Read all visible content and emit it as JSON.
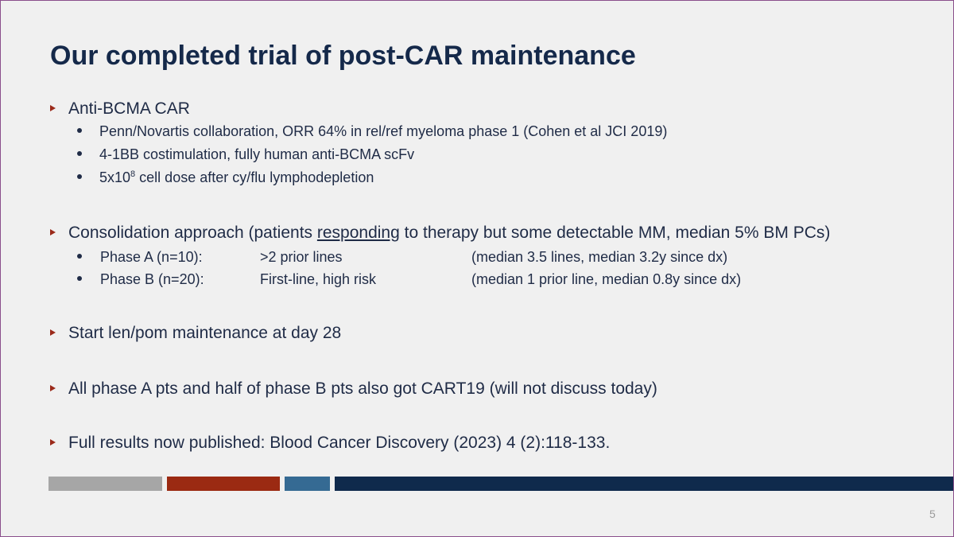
{
  "slide": {
    "title": "Our completed trial of post-CAR maintenance",
    "page_number": "5",
    "bullets": {
      "b1": {
        "text": "Anti-BCMA CAR",
        "sub1": "Penn/Novartis collaboration, ORR 64% in rel/ref myeloma phase 1 (Cohen et al JCI 2019)",
        "sub2": "4-1BB costimulation, fully human anti-BCMA scFv",
        "sub3_pre": "5x10",
        "sub3_sup": "8",
        "sub3_post": " cell dose after cy/flu lymphodepletion"
      },
      "b2": {
        "pre": "Consolidation approach (patients ",
        "underlined": "responding",
        "post": " to therapy but some detectable MM, median 5% BM PCs)",
        "phase_a": {
          "label": "Phase A (n=10):",
          "lines": ">2 prior lines",
          "detail": "(median 3.5 lines, median 3.2y since dx)"
        },
        "phase_b": {
          "label": "Phase B (n=20):",
          "lines": "First-line, high risk",
          "detail": "(median 1 prior line, median 0.8y since dx)"
        }
      },
      "b3": {
        "text": "Start len/pom maintenance at day 28"
      },
      "b4": {
        "text": "All phase A pts and half of phase B pts also got CART19 (will not discuss today)"
      },
      "b5": {
        "text": "Full results now published: Blood Cancer Discovery (2023) 4 (2):118-133."
      }
    }
  },
  "colors": {
    "title": "#15294a",
    "arrow": "#9b2a1a",
    "bar_gray": "#a6a6a6",
    "bar_red": "#9b2a12",
    "bar_blue": "#356a93",
    "bar_navy": "#0f2a4c"
  }
}
